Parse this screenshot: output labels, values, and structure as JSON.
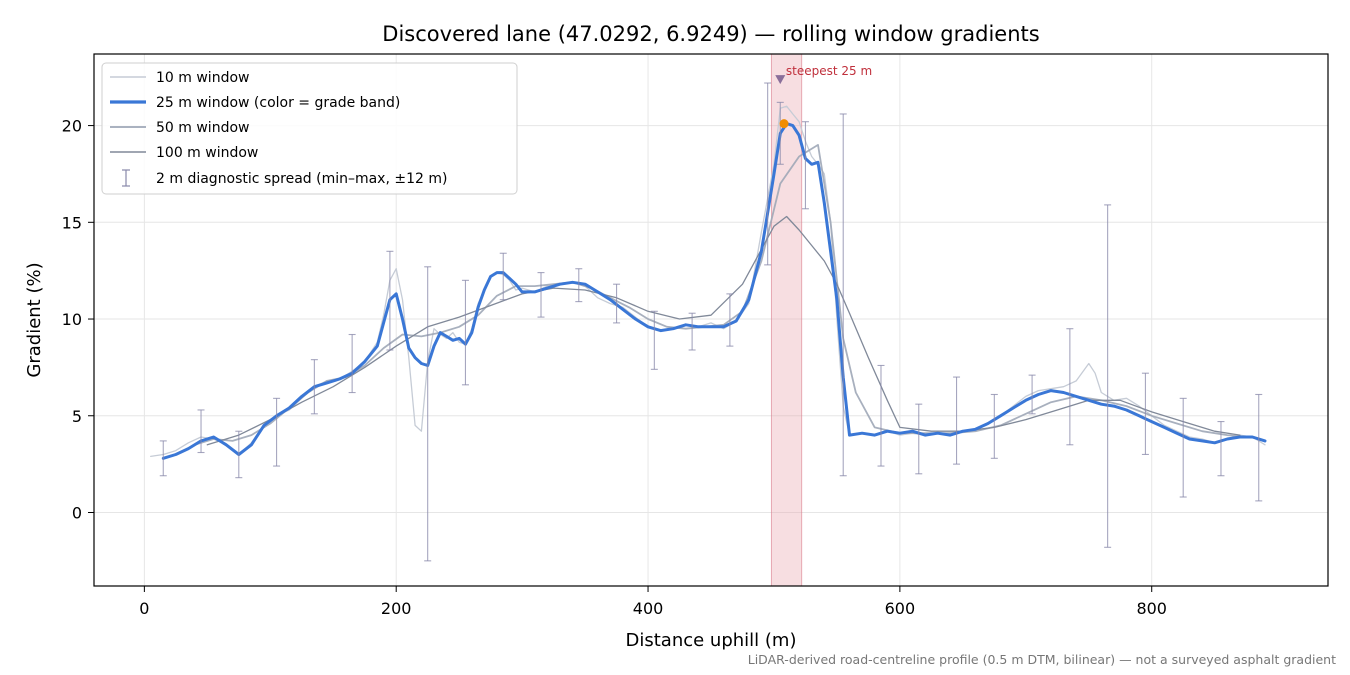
{
  "chart_data": {
    "type": "line",
    "title": "Discovered lane (47.0292, 6.9249) — rolling window gradients",
    "xlabel": "Distance uphill (m)",
    "ylabel": "Gradient (%)",
    "footnote": "LiDAR-derived road-centreline profile (0.5 m DTM, bilinear) — not a surveyed asphalt gradient",
    "xlim": [
      -40,
      940
    ],
    "ylim": [
      -3.8,
      23.7
    ],
    "x_ticks": [
      0,
      200,
      400,
      600,
      800
    ],
    "x_tick_labels": [
      "0",
      "200",
      "400",
      "600",
      "800"
    ],
    "y_ticks": [
      0,
      5,
      10,
      15,
      20
    ],
    "y_tick_labels": [
      "0",
      "5",
      "10",
      "15",
      "20"
    ],
    "grid": true,
    "legend_position": "upper-left",
    "highlight_band": {
      "x_start": 498,
      "x_end": 522,
      "color": "#e8a0aa"
    },
    "annotation": {
      "text": "steepest 25 m",
      "x": 505,
      "y": 22.4,
      "color": "#c0303c"
    },
    "steepest_point": {
      "x": 508,
      "y": 20.1,
      "color": "#f08c00"
    },
    "series": [
      {
        "name": "10 m window",
        "color": "#c6ccd6",
        "x": [
          5,
          15,
          25,
          35,
          45,
          55,
          65,
          75,
          85,
          95,
          105,
          115,
          125,
          135,
          145,
          155,
          165,
          175,
          185,
          190,
          195,
          200,
          205,
          210,
          215,
          220,
          225,
          230,
          235,
          240,
          245,
          250,
          255,
          260,
          265,
          270,
          275,
          280,
          285,
          290,
          295,
          300,
          310,
          320,
          330,
          340,
          350,
          360,
          370,
          380,
          390,
          400,
          410,
          420,
          430,
          440,
          450,
          460,
          470,
          480,
          490,
          500,
          505,
          510,
          515,
          520,
          525,
          530,
          535,
          540,
          545,
          550,
          555,
          560,
          570,
          580,
          590,
          600,
          610,
          620,
          630,
          640,
          650,
          660,
          670,
          680,
          690,
          700,
          710,
          720,
          730,
          740,
          750,
          755,
          760,
          770,
          780,
          790,
          800,
          810,
          820,
          830,
          840,
          850,
          860,
          870,
          880,
          890
        ],
        "values": [
          2.9,
          3.0,
          3.2,
          3.6,
          3.9,
          3.8,
          3.5,
          3.0,
          3.6,
          4.5,
          5.0,
          5.3,
          5.9,
          6.5,
          6.8,
          6.9,
          7.3,
          7.8,
          8.8,
          10.2,
          12.0,
          12.6,
          11.0,
          8.0,
          4.5,
          4.2,
          7.8,
          9.5,
          9.2,
          9.0,
          9.3,
          8.8,
          8.7,
          9.5,
          10.8,
          11.5,
          12.2,
          12.4,
          12.3,
          12.0,
          11.5,
          11.6,
          11.4,
          11.7,
          11.8,
          11.9,
          11.7,
          11.1,
          10.8,
          10.6,
          10.1,
          9.6,
          9.4,
          9.5,
          9.7,
          9.6,
          9.8,
          9.5,
          9.9,
          10.8,
          14.5,
          18.0,
          20.9,
          21.0,
          20.6,
          20.2,
          19.2,
          18.4,
          18.0,
          17.5,
          15.0,
          10.0,
          5.5,
          4.0,
          4.1,
          4.0,
          4.2,
          4.0,
          4.1,
          4.0,
          4.1,
          4.0,
          4.2,
          4.3,
          4.6,
          5.0,
          5.5,
          6.0,
          6.3,
          6.4,
          6.5,
          6.8,
          7.7,
          7.2,
          6.2,
          5.8,
          5.9,
          5.5,
          5.0,
          4.5,
          4.2,
          3.9,
          3.8,
          3.6,
          3.8,
          4.0,
          3.9,
          3.5
        ]
      },
      {
        "name": "25 m window (color = grade band)",
        "color": "#3a77d6",
        "x": [
          15,
          25,
          35,
          45,
          55,
          65,
          75,
          85,
          95,
          105,
          115,
          125,
          135,
          145,
          155,
          165,
          175,
          185,
          190,
          195,
          200,
          205,
          210,
          215,
          220,
          225,
          230,
          235,
          240,
          245,
          250,
          255,
          260,
          265,
          270,
          275,
          280,
          285,
          290,
          295,
          300,
          310,
          320,
          330,
          340,
          350,
          360,
          370,
          380,
          390,
          400,
          410,
          420,
          430,
          440,
          450,
          460,
          470,
          480,
          490,
          495,
          500,
          505,
          510,
          515,
          520,
          525,
          530,
          535,
          540,
          545,
          550,
          555,
          560,
          570,
          580,
          590,
          600,
          610,
          620,
          630,
          640,
          650,
          660,
          670,
          680,
          690,
          700,
          710,
          720,
          730,
          740,
          750,
          760,
          770,
          780,
          790,
          800,
          810,
          820,
          830,
          840,
          850,
          860,
          870,
          880,
          890
        ],
        "values": [
          2.8,
          3.0,
          3.3,
          3.7,
          3.9,
          3.5,
          3.0,
          3.5,
          4.5,
          5.0,
          5.4,
          6.0,
          6.5,
          6.7,
          6.9,
          7.2,
          7.8,
          8.6,
          9.8,
          11.0,
          11.3,
          10.0,
          8.5,
          8.0,
          7.7,
          7.6,
          8.6,
          9.3,
          9.1,
          8.9,
          9.0,
          8.7,
          9.3,
          10.6,
          11.5,
          12.2,
          12.4,
          12.4,
          12.1,
          11.8,
          11.4,
          11.4,
          11.6,
          11.8,
          11.9,
          11.8,
          11.4,
          11.0,
          10.5,
          10.0,
          9.6,
          9.4,
          9.5,
          9.7,
          9.6,
          9.6,
          9.6,
          9.9,
          11.0,
          13.5,
          15.5,
          17.5,
          19.6,
          20.1,
          20.0,
          19.5,
          18.3,
          18.0,
          18.1,
          16.0,
          13.5,
          11.0,
          7.0,
          4.0,
          4.1,
          4.0,
          4.2,
          4.1,
          4.2,
          4.0,
          4.1,
          4.0,
          4.2,
          4.3,
          4.6,
          5.0,
          5.4,
          5.8,
          6.1,
          6.3,
          6.2,
          6.0,
          5.8,
          5.6,
          5.5,
          5.3,
          5.0,
          4.7,
          4.4,
          4.1,
          3.8,
          3.7,
          3.6,
          3.8,
          3.9,
          3.9,
          3.7
        ]
      },
      {
        "name": "50 m window",
        "color": "#9ea7b7",
        "x": [
          25,
          40,
          55,
          70,
          85,
          100,
          115,
          130,
          145,
          160,
          175,
          190,
          205,
          220,
          235,
          250,
          265,
          280,
          295,
          310,
          325,
          340,
          355,
          370,
          385,
          400,
          415,
          430,
          445,
          460,
          475,
          490,
          505,
          520,
          535,
          545,
          555,
          565,
          580,
          600,
          620,
          640,
          660,
          680,
          700,
          720,
          740,
          760,
          780,
          800,
          820,
          840,
          860,
          875
        ],
        "values": [
          3.0,
          3.5,
          3.8,
          3.7,
          4.0,
          4.6,
          5.4,
          6.2,
          6.8,
          7.0,
          7.6,
          8.5,
          9.2,
          9.1,
          9.3,
          9.6,
          10.2,
          11.2,
          11.7,
          11.7,
          11.8,
          11.9,
          11.6,
          11.1,
          10.6,
          10.0,
          9.6,
          9.5,
          9.6,
          9.7,
          10.4,
          13.0,
          17.0,
          18.4,
          19.0,
          15.0,
          9.0,
          6.2,
          4.4,
          4.1,
          4.1,
          4.1,
          4.2,
          4.5,
          5.1,
          5.7,
          6.0,
          5.8,
          5.5,
          5.0,
          4.6,
          4.2,
          4.0,
          3.9
        ]
      },
      {
        "name": "100 m window",
        "color": "#808999",
        "x": [
          50,
          75,
          100,
          125,
          150,
          175,
          200,
          225,
          250,
          275,
          300,
          325,
          350,
          375,
          400,
          425,
          450,
          475,
          500,
          510,
          520,
          530,
          540,
          550,
          560,
          575,
          590,
          600,
          625,
          650,
          675,
          700,
          725,
          750,
          775,
          800,
          825,
          850,
          870
        ],
        "values": [
          3.5,
          4.0,
          4.8,
          5.7,
          6.5,
          7.5,
          8.6,
          9.6,
          10.1,
          10.7,
          11.3,
          11.6,
          11.5,
          11.1,
          10.4,
          10.0,
          10.2,
          11.8,
          14.8,
          15.3,
          14.6,
          13.8,
          13.0,
          11.8,
          10.3,
          8.0,
          5.8,
          4.4,
          4.2,
          4.2,
          4.4,
          4.8,
          5.3,
          5.8,
          5.8,
          5.2,
          4.7,
          4.2,
          4.0
        ]
      }
    ],
    "diagnostic_spread": {
      "name": "2 m diagnostic spread (min–max, ±12 m)",
      "color": "#8888aa",
      "points": [
        {
          "x": 15,
          "min": 1.9,
          "max": 3.7
        },
        {
          "x": 45,
          "min": 3.1,
          "max": 5.3
        },
        {
          "x": 75,
          "min": 1.8,
          "max": 4.2
        },
        {
          "x": 105,
          "min": 2.4,
          "max": 5.9
        },
        {
          "x": 135,
          "min": 5.1,
          "max": 7.9
        },
        {
          "x": 165,
          "min": 6.2,
          "max": 9.2
        },
        {
          "x": 195,
          "min": 8.4,
          "max": 13.5
        },
        {
          "x": 225,
          "min": -2.5,
          "max": 12.7
        },
        {
          "x": 255,
          "min": 6.6,
          "max": 12.0
        },
        {
          "x": 285,
          "min": 11.0,
          "max": 13.4
        },
        {
          "x": 315,
          "min": 10.1,
          "max": 12.4
        },
        {
          "x": 345,
          "min": 10.9,
          "max": 12.6
        },
        {
          "x": 375,
          "min": 9.8,
          "max": 11.8
        },
        {
          "x": 405,
          "min": 7.4,
          "max": 10.4
        },
        {
          "x": 435,
          "min": 8.4,
          "max": 10.3
        },
        {
          "x": 465,
          "min": 8.6,
          "max": 11.3
        },
        {
          "x": 495,
          "min": 12.8,
          "max": 22.2
        },
        {
          "x": 505,
          "min": 18.0,
          "max": 21.2
        },
        {
          "x": 525,
          "min": 15.7,
          "max": 20.2
        },
        {
          "x": 555,
          "min": 1.9,
          "max": 20.6
        },
        {
          "x": 585,
          "min": 2.4,
          "max": 7.6
        },
        {
          "x": 615,
          "min": 2.0,
          "max": 5.6
        },
        {
          "x": 645,
          "min": 2.5,
          "max": 7.0
        },
        {
          "x": 675,
          "min": 2.8,
          "max": 6.1
        },
        {
          "x": 705,
          "min": 5.1,
          "max": 7.1
        },
        {
          "x": 735,
          "min": 3.5,
          "max": 9.5
        },
        {
          "x": 765,
          "min": -1.8,
          "max": 15.9
        },
        {
          "x": 795,
          "min": 3.0,
          "max": 7.2
        },
        {
          "x": 825,
          "min": 0.8,
          "max": 5.9
        },
        {
          "x": 855,
          "min": 1.9,
          "max": 4.7
        },
        {
          "x": 885,
          "min": 0.6,
          "max": 6.1
        }
      ]
    }
  }
}
